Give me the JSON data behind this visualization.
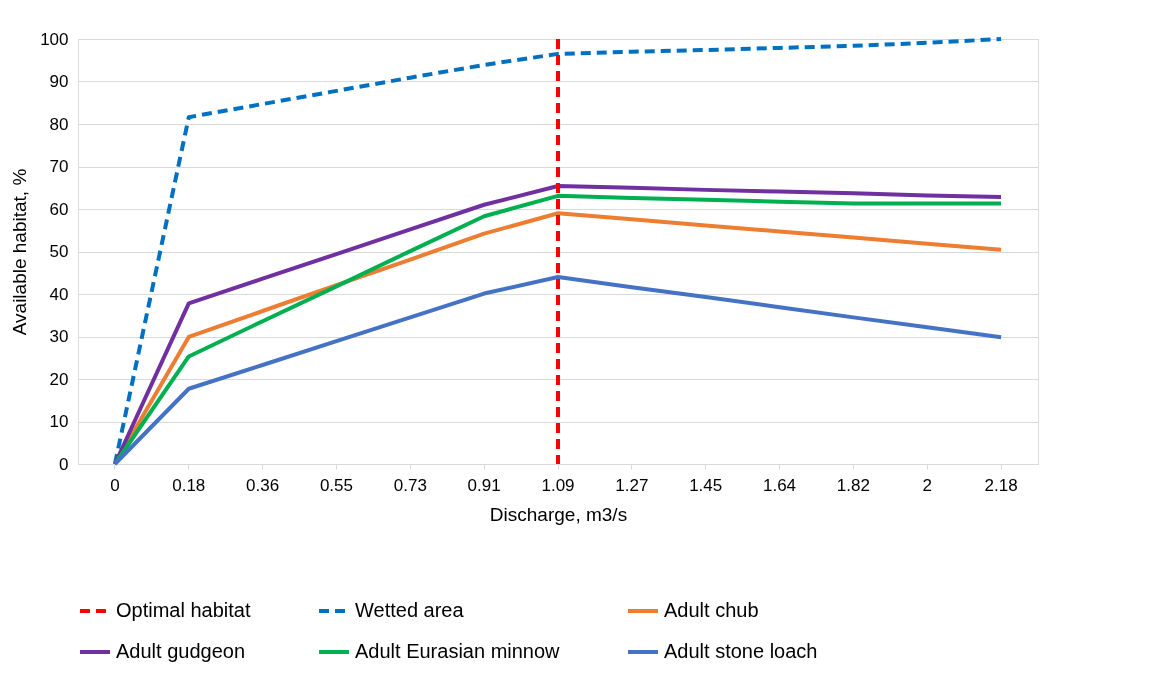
{
  "chart_data": {
    "type": "line",
    "xlabel": "Discharge, m3/s",
    "ylabel": "Available habitat, %",
    "categories": [
      "0",
      "0.18",
      "0.36",
      "0.55",
      "0.73",
      "0.91",
      "1.09",
      "1.27",
      "1.45",
      "1.64",
      "1.82",
      "2",
      "2.18"
    ],
    "ylim": [
      0,
      100
    ],
    "yticks": [
      0,
      10,
      20,
      30,
      40,
      50,
      60,
      70,
      80,
      90,
      100
    ],
    "grid": "y",
    "legend": "bottom",
    "marker": "none",
    "ref_lines": [
      {
        "axis": "x",
        "value": "1.09",
        "label": "Optimal habitat",
        "color": "#ff0000",
        "line_style": "dashed"
      }
    ],
    "series": [
      {
        "name": "Wetted area",
        "color": "#0070c0",
        "line_style": "dashed",
        "values": [
          0,
          81.6,
          84.7,
          87.8,
          90.9,
          93.9,
          96.5,
          97,
          97.4,
          97.9,
          98.4,
          99.1,
          100
        ]
      },
      {
        "name": "Adult chub",
        "color": "#ed7d31",
        "line_style": "solid",
        "values": [
          0,
          29.9,
          36.0,
          42.1,
          48.1,
          54.2,
          59.0,
          57.6,
          56.1,
          54.7,
          53.3,
          51.8,
          50.4
        ]
      },
      {
        "name": "Adult gudgeon",
        "color": "#7030a0",
        "line_style": "solid",
        "values": [
          0,
          37.8,
          43.6,
          49.4,
          55.2,
          61.0,
          65.4,
          65.0,
          64.5,
          64.1,
          63.7,
          63.2,
          62.8
        ]
      },
      {
        "name": "Adult Eurasian minnow",
        "color": "#00b050",
        "line_style": "solid",
        "values": [
          0,
          25.3,
          33.6,
          41.8,
          50.1,
          58.3,
          63.1,
          62.6,
          62.2,
          61.7,
          61.3,
          61.3,
          61.3
        ]
      },
      {
        "name": "Adult stone loach",
        "color": "#4472c4",
        "line_style": "solid",
        "values": [
          0,
          17.7,
          23.3,
          28.9,
          34.5,
          40.1,
          44.0,
          41.6,
          39.3,
          36.9,
          34.5,
          32.2,
          29.8
        ]
      }
    ]
  }
}
